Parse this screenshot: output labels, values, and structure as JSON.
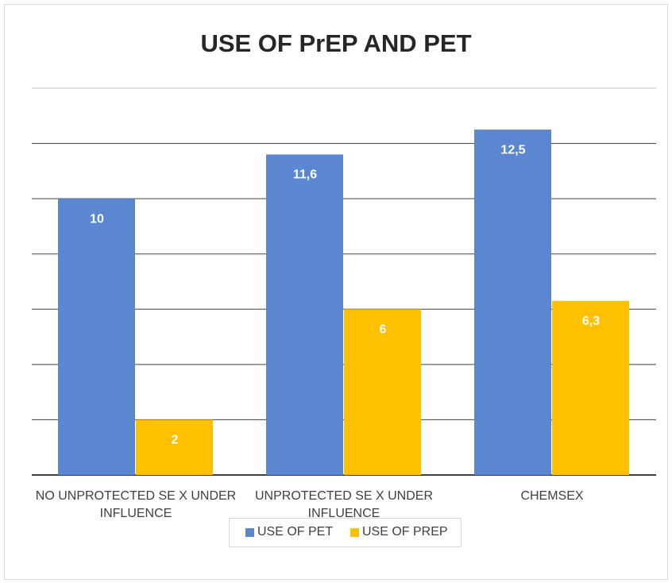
{
  "chart_data": {
    "type": "bar",
    "title": "USE OF PrEP AND PET",
    "categories": [
      "NO UNPROTECTED SE X UNDER INFLUENCE",
      "UNPROTECTED SE X UNDER INFLUENCE",
      "CHEMSEX"
    ],
    "series": [
      {
        "name": "USE OF PET",
        "color": "#5b86d0",
        "values": [
          10,
          11.6,
          12.5
        ],
        "value_labels": [
          "10",
          "11,6",
          "12,5"
        ]
      },
      {
        "name": "USE OF PREP",
        "color": "#ffc000",
        "values": [
          2,
          6,
          6.3
        ],
        "value_labels": [
          "2",
          "6",
          "6,3"
        ]
      }
    ],
    "ylim": [
      0,
      14
    ],
    "yticks": [
      0,
      2,
      4,
      6,
      8,
      10,
      12,
      14
    ],
    "grid": true,
    "legend": "bottom"
  }
}
